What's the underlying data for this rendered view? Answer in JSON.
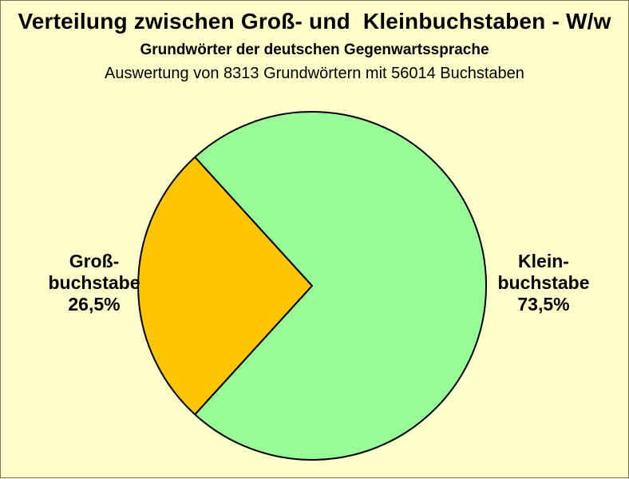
{
  "page": {
    "background_color": "#FFFFCC",
    "border_color": "#75755C"
  },
  "chart_data": {
    "type": "pie",
    "title": "Verteilung zwischen Groß- und  Kleinbuchstaben - W/w",
    "subtitle": "Grundwörter der deutschen Gegenwartssprache",
    "caption": "Auswertung von 8313 Grundwörtern mit 56014 Buchstaben",
    "unit": "%",
    "legend_position": "side-labels",
    "outline_color": "#000000",
    "slices": [
      {
        "name": "Großbuchstabe",
        "value": 26.5,
        "value_text": "26,5%",
        "label_lines": [
          "Groß-",
          "buchstabe",
          "26,5%"
        ],
        "color": "#FDC500"
      },
      {
        "name": "Kleinbuchstabe",
        "value": 73.5,
        "value_text": "73,5%",
        "label_lines": [
          "Klein-",
          "buchstabe",
          "73,5%"
        ],
        "color": "#98FB98"
      }
    ]
  }
}
